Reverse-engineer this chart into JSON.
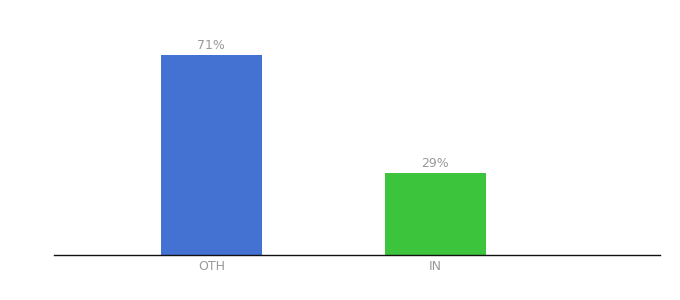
{
  "categories": [
    "OTH",
    "IN"
  ],
  "values": [
    71,
    29
  ],
  "bar_colors": [
    "#4472D3",
    "#3DC43D"
  ],
  "bar_labels": [
    "71%",
    "29%"
  ],
  "background_color": "#ffffff",
  "text_color": "#999999",
  "label_fontsize": 9,
  "tick_fontsize": 9,
  "ylim": [
    0,
    82
  ],
  "bar_width": 0.45,
  "x_positions": [
    1,
    2
  ],
  "xlim": [
    0.3,
    3.0
  ]
}
